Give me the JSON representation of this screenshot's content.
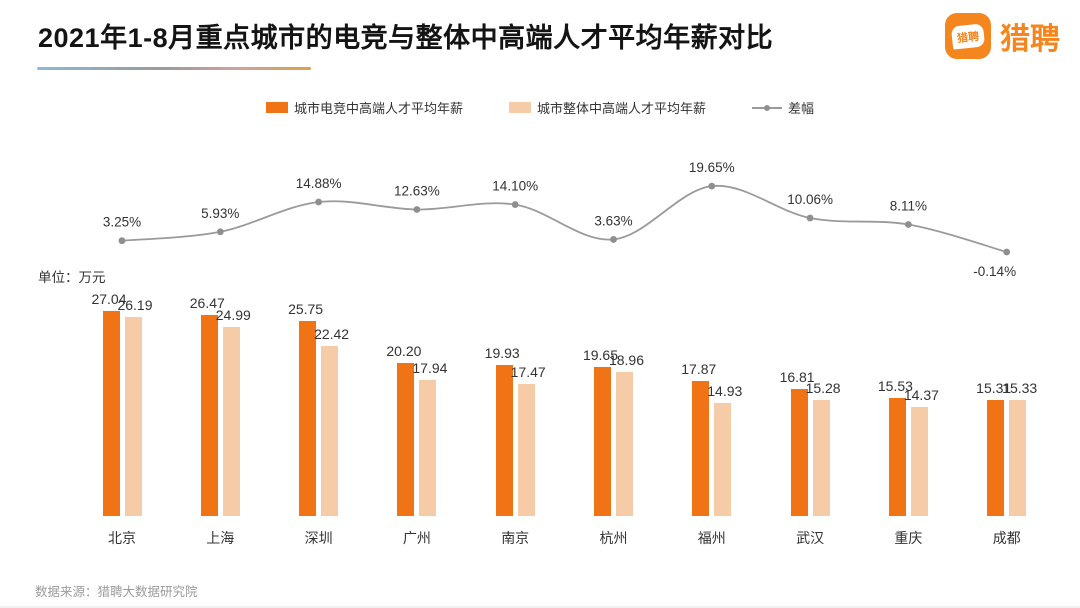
{
  "header": {
    "title": "2021年1-8月重点城市的电竞与整体中高端人才平均年薪对比",
    "logo_text": "猎聘",
    "logo_icon_text": "猎聘"
  },
  "legend": [
    {
      "label": "城市电竞中高端人才平均年薪",
      "type": "bar",
      "color": "#F07315"
    },
    {
      "label": "城市整体中高端人才平均年薪",
      "type": "bar",
      "color": "#F6CBA7"
    },
    {
      "label": "差幅",
      "type": "line",
      "color": "#9a9a9a"
    }
  ],
  "unit_label": "单位：万元",
  "footer": {
    "source": "数据来源：猎聘大数据研究院"
  },
  "colors": {
    "esports_bar": "#F07315",
    "overall_bar": "#F6CBA7",
    "diff_line": "#9a9a9a",
    "diff_marker": "#8f8f8f",
    "brand_orange": "#F5861E",
    "text_dark": "#333333",
    "text_muted": "#9b9b9b"
  },
  "chart_data": {
    "type": "bar",
    "subtype": "grouped-bars-with-line",
    "title": "2021年1-8月重点城市的电竞与整体中高端人才平均年薪对比",
    "ylabel": "单位：万元",
    "legend_position": "top",
    "grid": false,
    "categories": [
      "北京",
      "上海",
      "深圳",
      "广州",
      "南京",
      "杭州",
      "福州",
      "武汉",
      "重庆",
      "成都"
    ],
    "series": [
      {
        "name": "城市电竞中高端人才平均年薪",
        "type": "bar",
        "color": "#F07315",
        "values": [
          27.04,
          26.47,
          25.75,
          20.2,
          19.93,
          19.65,
          17.87,
          16.81,
          15.53,
          15.31
        ]
      },
      {
        "name": "城市整体中高端人才平均年薪",
        "type": "bar",
        "color": "#F6CBA7",
        "values": [
          26.19,
          24.99,
          22.42,
          17.94,
          17.47,
          18.96,
          14.93,
          15.28,
          14.37,
          15.33
        ]
      },
      {
        "name": "差幅",
        "type": "line",
        "color": "#9a9a9a",
        "values": [
          3.25,
          5.93,
          14.88,
          12.63,
          14.1,
          3.63,
          19.65,
          10.06,
          8.11,
          -0.14
        ],
        "labels": [
          "3.25%",
          "5.93%",
          "14.88%",
          "12.63%",
          "14.10%",
          "3.63%",
          "19.65%",
          "10.06%",
          "8.11%",
          "-0.14%"
        ]
      }
    ]
  }
}
